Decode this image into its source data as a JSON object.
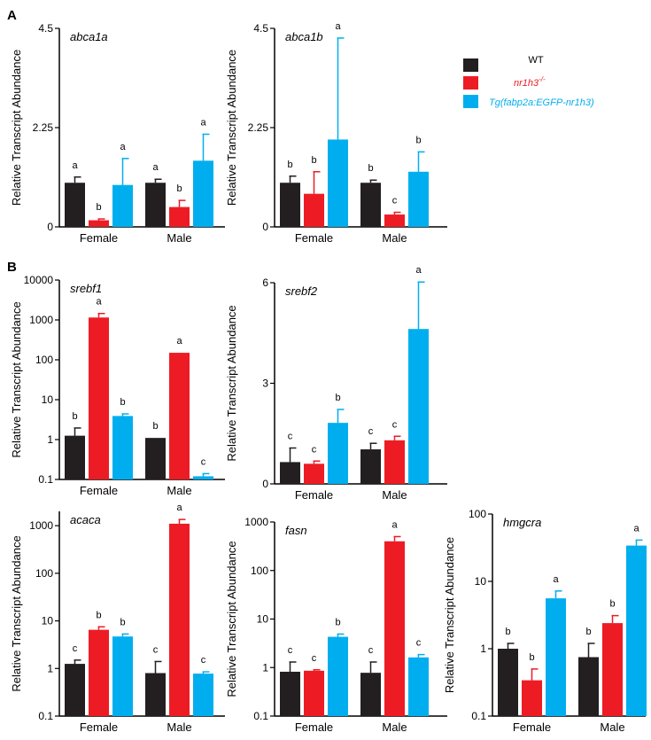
{
  "panel_labels": {
    "a": "A",
    "b": "B"
  },
  "legend": [
    {
      "label": "WT",
      "color": "#231f20",
      "style": "normal"
    },
    {
      "label": "nr1h3",
      "sup": "-/-",
      "color": "#ed1c24",
      "style": "italic"
    },
    {
      "label": "Tg(fabp2a:EGFP-nr1h3)",
      "color": "#00aeef",
      "style": "italic"
    }
  ],
  "chart_data": [
    {
      "type": "bar",
      "title": "abca1a",
      "scale": "linear",
      "ylabel": "Relative Transcript Abundance",
      "ylim": [
        0,
        4.5
      ],
      "yticks": [
        0,
        2.25,
        4.5
      ],
      "yticklabels": [
        "0",
        "2.25",
        "4.5"
      ],
      "categories": [
        "Female",
        "Male"
      ],
      "series": [
        {
          "name": "WT",
          "values": [
            1.0,
            1.0
          ],
          "errors": [
            0.13,
            0.08
          ],
          "letters": [
            "a",
            "a"
          ]
        },
        {
          "name": "nr1h3-/-",
          "values": [
            0.15,
            0.45
          ],
          "errors": [
            0.03,
            0.15
          ],
          "letters": [
            "b",
            "b"
          ]
        },
        {
          "name": "Tg(fabp2a:EGFP-nr1h3)",
          "values": [
            0.95,
            1.5
          ],
          "errors": [
            0.6,
            0.6
          ],
          "letters": [
            "a",
            "a"
          ]
        }
      ]
    },
    {
      "type": "bar",
      "title": "abca1b",
      "scale": "linear",
      "ylabel": "Relative Transcript Abundance",
      "ylim": [
        0,
        4.5
      ],
      "yticks": [
        0,
        2.25,
        4.5
      ],
      "yticklabels": [
        "0",
        "2.25",
        "4.5"
      ],
      "categories": [
        "Female",
        "Male"
      ],
      "series": [
        {
          "name": "WT",
          "values": [
            1.0,
            1.0
          ],
          "errors": [
            0.15,
            0.06
          ],
          "letters": [
            "b",
            "b"
          ]
        },
        {
          "name": "nr1h3-/-",
          "values": [
            0.75,
            0.28
          ],
          "errors": [
            0.5,
            0.05
          ],
          "letters": [
            "b",
            "c"
          ]
        },
        {
          "name": "Tg(fabp2a:EGFP-nr1h3)",
          "values": [
            1.98,
            1.25
          ],
          "errors": [
            2.3,
            0.45
          ],
          "letters": [
            "a",
            "b"
          ]
        }
      ]
    },
    {
      "type": "bar",
      "title": "srebf1",
      "scale": "log",
      "ylabel": "Relative Transcript Abundance",
      "ylim": [
        0.1,
        10000
      ],
      "yticks": [
        0.1,
        1,
        10,
        100,
        1000,
        10000
      ],
      "yticklabels": [
        "0.1",
        "1",
        "10",
        "100",
        "1000",
        "10000"
      ],
      "categories": [
        "Female",
        "Male"
      ],
      "series": [
        {
          "name": "WT",
          "values": [
            1.25,
            1.1
          ],
          "errors_hi": [
            1.95,
            1.1
          ],
          "letters": [
            "b",
            "b"
          ]
        },
        {
          "name": "nr1h3-/-",
          "values": [
            1150,
            150
          ],
          "errors_hi": [
            1450,
            150
          ],
          "letters": [
            "a",
            "a"
          ]
        },
        {
          "name": "Tg(fabp2a:EGFP-nr1h3)",
          "values": [
            3.9,
            0.12
          ],
          "errors_hi": [
            4.4,
            0.14
          ],
          "letters": [
            "b",
            "c"
          ]
        }
      ]
    },
    {
      "type": "bar",
      "title": "srebf2",
      "scale": "linear",
      "ylabel": "Relative Transcript Abundance",
      "ylim": [
        0,
        6
      ],
      "yticks": [
        0,
        3,
        6
      ],
      "yticklabels": [
        "0",
        "3",
        "6"
      ],
      "categories": [
        "Female",
        "Male"
      ],
      "series": [
        {
          "name": "WT",
          "values": [
            0.65,
            1.03
          ],
          "errors": [
            0.42,
            0.18
          ],
          "letters": [
            "c",
            "c"
          ]
        },
        {
          "name": "nr1h3-/-",
          "values": [
            0.6,
            1.3
          ],
          "errors": [
            0.08,
            0.12
          ],
          "letters": [
            "c",
            "c"
          ]
        },
        {
          "name": "Tg(fabp2a:EGFP-nr1h3)",
          "values": [
            1.82,
            4.62
          ],
          "errors": [
            0.4,
            1.4
          ],
          "letters": [
            "b",
            "a"
          ]
        }
      ]
    },
    {
      "type": "bar",
      "title": "acaca",
      "scale": "log",
      "ylabel": "Relative Transcript Abundance",
      "ylim": [
        0.1,
        2000
      ],
      "yticks": [
        0.1,
        1,
        10,
        100,
        1000
      ],
      "yticklabels": [
        "0.1",
        "1",
        "10",
        "100",
        "1000"
      ],
      "categories": [
        "Female",
        "Male"
      ],
      "series": [
        {
          "name": "WT",
          "values": [
            1.25,
            0.8
          ],
          "errors_hi": [
            1.5,
            1.4
          ],
          "letters": [
            "c",
            "c"
          ]
        },
        {
          "name": "nr1h3-/-",
          "values": [
            6.5,
            1100
          ],
          "errors_hi": [
            7.5,
            1350
          ],
          "letters": [
            "b",
            "a"
          ]
        },
        {
          "name": "Tg(fabp2a:EGFP-nr1h3)",
          "values": [
            4.7,
            0.78
          ],
          "errors_hi": [
            5.3,
            0.85
          ],
          "letters": [
            "b",
            "c"
          ]
        }
      ]
    },
    {
      "type": "bar",
      "title": "fasn",
      "scale": "log",
      "ylabel": "Relative Transcript Abundance",
      "ylim": [
        0.1,
        1000
      ],
      "yticks": [
        0.1,
        1,
        10,
        100,
        1000
      ],
      "yticklabels": [
        "0.1",
        "1",
        "10",
        "100",
        "1000"
      ],
      "categories": [
        "Female",
        "Male"
      ],
      "series": [
        {
          "name": "WT",
          "values": [
            0.82,
            0.78
          ],
          "errors_hi": [
            1.3,
            1.3
          ],
          "letters": [
            "c",
            "c"
          ]
        },
        {
          "name": "nr1h3-/-",
          "values": [
            0.86,
            400
          ],
          "errors_hi": [
            0.9,
            500
          ],
          "letters": [
            "c",
            "a"
          ]
        },
        {
          "name": "Tg(fabp2a:EGFP-nr1h3)",
          "values": [
            4.3,
            1.62
          ],
          "errors_hi": [
            4.9,
            1.85
          ],
          "letters": [
            "b",
            "c"
          ]
        }
      ]
    },
    {
      "type": "bar",
      "title": "hmgcra",
      "scale": "log",
      "ylabel": "Relative Transcript Abundance",
      "ylim": [
        0.1,
        100
      ],
      "yticks": [
        0.1,
        1,
        10,
        100
      ],
      "yticklabels": [
        "0.1",
        "1",
        "10",
        "100"
      ],
      "categories": [
        "Female",
        "Male"
      ],
      "series": [
        {
          "name": "WT",
          "values": [
            1.0,
            0.75
          ],
          "errors_hi": [
            1.2,
            1.2
          ],
          "letters": [
            "b",
            "b"
          ]
        },
        {
          "name": "nr1h3-/-",
          "values": [
            0.34,
            2.4
          ],
          "errors_hi": [
            0.5,
            3.1
          ],
          "letters": [
            "b",
            "b"
          ]
        },
        {
          "name": "Tg(fabp2a:EGFP-nr1h3)",
          "values": [
            5.6,
            34
          ],
          "errors_hi": [
            7.2,
            41
          ],
          "letters": [
            "a",
            "a"
          ]
        }
      ]
    }
  ]
}
